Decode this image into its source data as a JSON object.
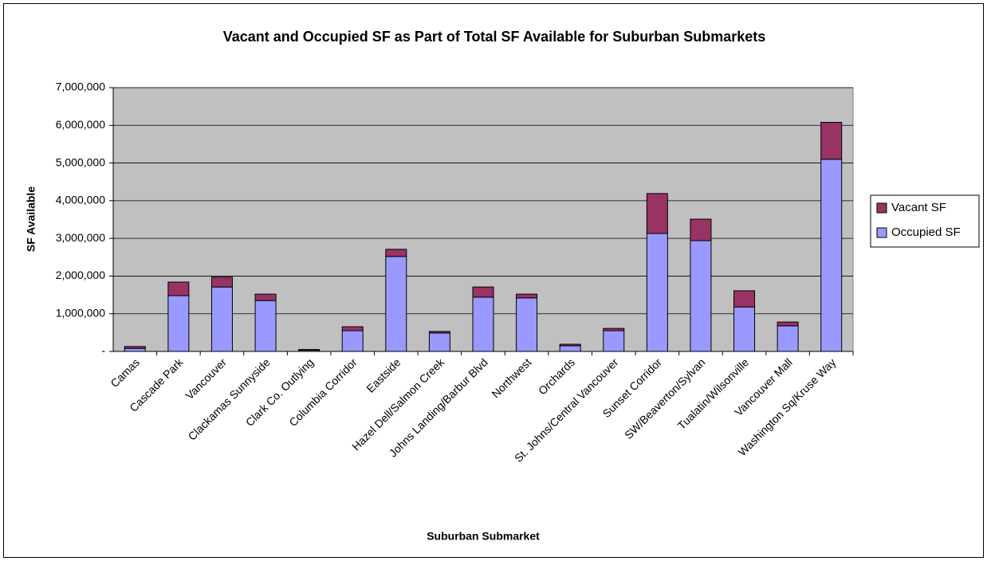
{
  "chart_data": {
    "type": "stacked_bar",
    "title": "Vacant and Occupied SF as Part of Total SF Available for Suburban Submarkets",
    "x_label": "Suburban Submarket",
    "y_label": "SF Available",
    "categories": [
      "Camas",
      "Cascade Park",
      "Vancouver",
      "Clackamas Sunnyside",
      "Clark Co. Outlying",
      "Columbia Corridor",
      "Eastside",
      "Hazel Dell/Salmon Creek",
      "Johns Landing/Barbur Blvd",
      "Northwest",
      "Orchards",
      "St. Johns/Central Vancouver",
      "Sunset Corridor",
      "SW/Beaverton/Sylvan",
      "Tualatin/Wilsonville",
      "Vancouver Mall",
      "Washington Sq/Kruse Way"
    ],
    "series": [
      {
        "name": "Occupied SF",
        "color": "#9999ff",
        "values": [
          80000,
          1480000,
          1710000,
          1350000,
          30000,
          550000,
          2520000,
          490000,
          1440000,
          1420000,
          150000,
          550000,
          3130000,
          2940000,
          1180000,
          680000,
          5100000
        ]
      },
      {
        "name": "Vacant SF",
        "color": "#993366",
        "values": [
          50000,
          360000,
          260000,
          170000,
          20000,
          105000,
          190000,
          40000,
          270000,
          100000,
          40000,
          60000,
          1060000,
          570000,
          430000,
          100000,
          980000
        ]
      }
    ],
    "ylim": [
      0,
      7000000
    ],
    "yticks": [
      {
        "value": 0,
        "label": "-"
      },
      {
        "value": 1000000,
        "label": "1,000,000"
      },
      {
        "value": 2000000,
        "label": "2,000,000"
      },
      {
        "value": 3000000,
        "label": "3,000,000"
      },
      {
        "value": 4000000,
        "label": "4,000,000"
      },
      {
        "value": 5000000,
        "label": "5,000,000"
      },
      {
        "value": 6000000,
        "label": "6,000,000"
      },
      {
        "value": 7000000,
        "label": "7,000,000"
      }
    ],
    "grid": true,
    "legend_position": "right"
  }
}
